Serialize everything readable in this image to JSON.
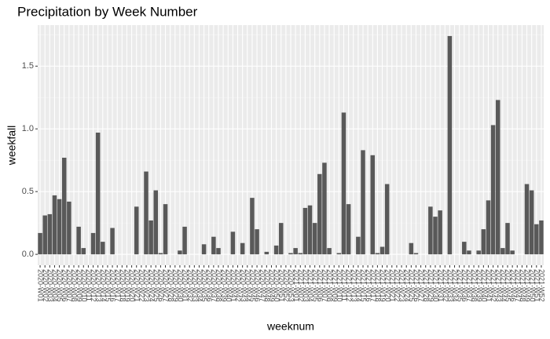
{
  "chart_data": {
    "type": "bar",
    "title": "Precipitation by Week Number",
    "x_label": "weeknum",
    "y_label": "weekfall",
    "categories": [
      "2020-W01",
      "2020-W02",
      "2020-W03",
      "2020-W04",
      "2020-W05",
      "2020-W06",
      "2020-W07",
      "2020-W08",
      "2020-W09",
      "2020-W10",
      "2020-W11",
      "2020-W12",
      "2020-W13",
      "2020-W14",
      "2020-W15",
      "2020-W16",
      "2020-W17",
      "2020-W18",
      "2020-W19",
      "2020-W20",
      "2020-W21",
      "2020-W22",
      "2020-W23",
      "2020-W24",
      "2020-W25",
      "2020-W26",
      "2020-W27",
      "2020-W28",
      "2020-W29",
      "2020-W30",
      "2020-W31",
      "2020-W32",
      "2020-W33",
      "2020-W34",
      "2020-W35",
      "2020-W36",
      "2020-W37",
      "2020-W38",
      "2020-W39",
      "2020-W40",
      "2020-W41",
      "2020-W42",
      "2020-W43",
      "2020-W44",
      "2020-W45",
      "2020-W46",
      "2020-W47",
      "2020-W48",
      "2020-W49",
      "2020-W50",
      "2020-W51",
      "2020-W52",
      "2020-W53",
      "2021-W01",
      "2021-W02",
      "2021-W03",
      "2021-W04",
      "2021-W05",
      "2021-W06",
      "2021-W07",
      "2021-W08",
      "2021-W09",
      "2021-W10",
      "2021-W11",
      "2021-W12",
      "2021-W13",
      "2021-W14",
      "2021-W15",
      "2021-W16",
      "2021-W17",
      "2021-W18",
      "2021-W19",
      "2021-W20",
      "2021-W21",
      "2021-W22",
      "2021-W23",
      "2021-W24",
      "2021-W25",
      "2021-W26",
      "2021-W27",
      "2021-W28",
      "2021-W29",
      "2021-W30",
      "2021-W31",
      "2021-W32",
      "2021-W33",
      "2021-W34",
      "2021-W35",
      "2021-W36",
      "2021-W37",
      "2021-W38",
      "2021-W39",
      "2021-W40",
      "2021-W41",
      "2021-W42",
      "2021-W43",
      "2021-W44",
      "2021-W45",
      "2021-W46",
      "2021-W47",
      "2021-W48",
      "2021-W49",
      "2021-W50",
      "2021-W51",
      "2021-W52"
    ],
    "values": [
      0.17,
      0.31,
      0.32,
      0.47,
      0.44,
      0.77,
      0.42,
      0,
      0.22,
      0.05,
      0,
      0.17,
      0.97,
      0.1,
      0,
      0.21,
      0,
      0,
      0,
      0,
      0.38,
      0,
      0.66,
      0.27,
      0.51,
      0.01,
      0.4,
      0,
      0,
      0.03,
      0.22,
      0,
      0,
      0,
      0.08,
      0,
      0.14,
      0.05,
      0,
      0,
      0.18,
      0,
      0.09,
      0,
      0.45,
      0.2,
      0,
      0.02,
      0,
      0.07,
      0.25,
      0,
      0.01,
      0.05,
      0.01,
      0.37,
      0.39,
      0.25,
      0.64,
      0.73,
      0.05,
      0,
      0.01,
      1.13,
      0.4,
      0,
      0.14,
      0.83,
      0,
      0.79,
      0.01,
      0.06,
      0.56,
      0,
      0,
      0,
      0,
      0.09,
      0.01,
      0,
      0,
      0.38,
      0.3,
      0.35,
      0,
      1.74,
      0,
      0,
      0.1,
      0.03,
      0,
      0.03,
      0.2,
      0.43,
      1.03,
      1.23,
      0.05,
      0.25,
      0.03,
      0,
      0,
      0.56,
      0.51,
      0.24,
      0.27
    ],
    "color": "#595959",
    "ylim": [
      -0.087,
      1.827
    ],
    "yticks": [
      {
        "value": 0,
        "label": "0.0"
      },
      {
        "value": 0.5,
        "label": "0.5"
      },
      {
        "value": 1,
        "label": "1.0"
      },
      {
        "value": 1.5,
        "label": "1.5"
      }
    ],
    "yminor": [
      0.25,
      0.75,
      1.25,
      1.75
    ],
    "grid": true
  }
}
